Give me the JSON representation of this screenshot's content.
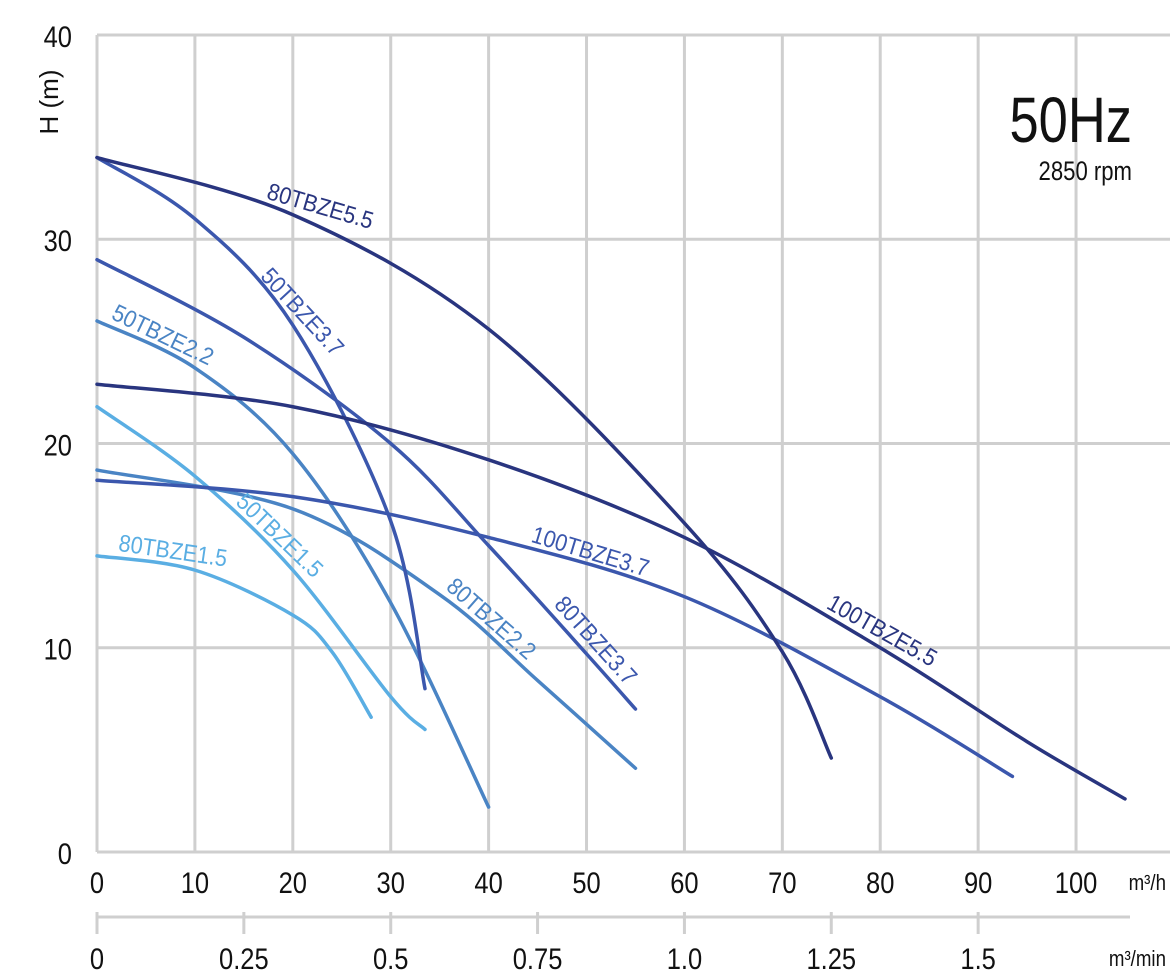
{
  "chart_data": {
    "type": "line",
    "title": "50Hz",
    "subtitle": "2850 rpm",
    "ylabel": "H (m)",
    "xunit": "m³/h",
    "x2unit": "m³/min",
    "xlim": [
      0,
      105
    ],
    "ylim": [
      0,
      40
    ],
    "xticks": [
      "0",
      "10",
      "20",
      "30",
      "40",
      "50",
      "60",
      "70",
      "80",
      "90",
      "100"
    ],
    "yticks": [
      "0",
      "10",
      "20",
      "30",
      "40"
    ],
    "x2ticks": [
      "0",
      "0.25",
      "0.5",
      "0.75",
      "1.0",
      "1.25",
      "1.5"
    ],
    "grid": true,
    "series": [
      {
        "name": "80TBZE1.5",
        "color": "#5aaee3",
        "points": [
          [
            0,
            14.5
          ],
          [
            10,
            13.8
          ],
          [
            20,
            11.6
          ],
          [
            24,
            9.8
          ],
          [
            28,
            6.6
          ]
        ]
      },
      {
        "name": "50TBZE1.5",
        "color": "#5aaee3",
        "points": [
          [
            0,
            21.8
          ],
          [
            10,
            18.4
          ],
          [
            20,
            13.8
          ],
          [
            30,
            7.6
          ],
          [
            33.5,
            6
          ]
        ]
      },
      {
        "name": "50TBZE2.2",
        "color": "#4a84c4",
        "points": [
          [
            0,
            26
          ],
          [
            10,
            23.7
          ],
          [
            20,
            19.5
          ],
          [
            30,
            12.2
          ],
          [
            40,
            2.2
          ]
        ]
      },
      {
        "name": "80TBZE2.2",
        "color": "#4a84c4",
        "points": [
          [
            0,
            18.7
          ],
          [
            20,
            16.8
          ],
          [
            35,
            12.6
          ],
          [
            45,
            8.4
          ],
          [
            55,
            4.1
          ]
        ]
      },
      {
        "name": "50TBZE3.7",
        "color": "#3b57ad",
        "points": [
          [
            0,
            34
          ],
          [
            10,
            31
          ],
          [
            20,
            25.8
          ],
          [
            30,
            16.2
          ],
          [
            33.5,
            8
          ]
        ]
      },
      {
        "name": "80TBZE3.7",
        "color": "#3b57ad",
        "points": [
          [
            0,
            29
          ],
          [
            15,
            25.2
          ],
          [
            30,
            20
          ],
          [
            40,
            15
          ],
          [
            50,
            9.7
          ],
          [
            55,
            7
          ]
        ]
      },
      {
        "name": "100TBZE3.7",
        "color": "#3b57ad",
        "points": [
          [
            0,
            18.2
          ],
          [
            20,
            17.4
          ],
          [
            40,
            15.4
          ],
          [
            60,
            12.5
          ],
          [
            80,
            7.6
          ],
          [
            93.5,
            3.7
          ]
        ]
      },
      {
        "name": "80TBZE5.5",
        "color": "#29357f",
        "points": [
          [
            0,
            34
          ],
          [
            20,
            31.2
          ],
          [
            40,
            25.6
          ],
          [
            60,
            16.1
          ],
          [
            70,
            9.8
          ],
          [
            75,
            4.6
          ]
        ]
      },
      {
        "name": "100TBZE5.5",
        "color": "#29357f",
        "points": [
          [
            0,
            22.9
          ],
          [
            20,
            21.8
          ],
          [
            40,
            19.2
          ],
          [
            60,
            15.4
          ],
          [
            80,
            10
          ],
          [
            95,
            5.4
          ],
          [
            105,
            2.6
          ]
        ]
      }
    ]
  }
}
